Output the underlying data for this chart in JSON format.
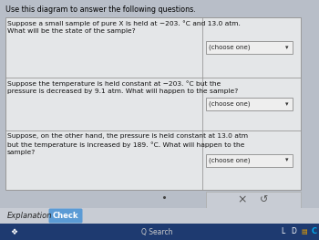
{
  "title": "Use this diagram to answer the following questions.",
  "bg_color": "#b8bec8",
  "panel_bg": "#d0d4da",
  "box_bg": "#e4e6e8",
  "row1_text": "Suppose a small sample of pure X is held at −203. °C and 13.0 atm.\nWhat will be the state of the sample?",
  "row2_text": "Suppose the temperature is held constant at −203. °C but the\npressure is decreased by 9.1 atm. What will happen to the sample?",
  "row3_text": "Suppose, on the other hand, the pressure is held constant at 13.0 atm\nbut the temperature is increased by 189. °C. What will happen to the\nsample?",
  "dropdown_text": "(choose one)",
  "explanation_text": "Explanation",
  "check_text": "Check",
  "check_bg": "#5b9bd5",
  "title_color": "#000000",
  "row_text_color": "#111111",
  "dropdown_bg": "#eeeeee",
  "dropdown_border": "#999999",
  "dot_color": "#444444",
  "btns_bg": "#c8ccd4",
  "btns_border": "#aaaaaa",
  "expl_area_bg": "#c8ccd4",
  "taskbar_bg": "#1e3a70",
  "search_text": "Q Search",
  "grid_color": "#999999",
  "x_color": "#555555",
  "refresh_color": "#555555"
}
